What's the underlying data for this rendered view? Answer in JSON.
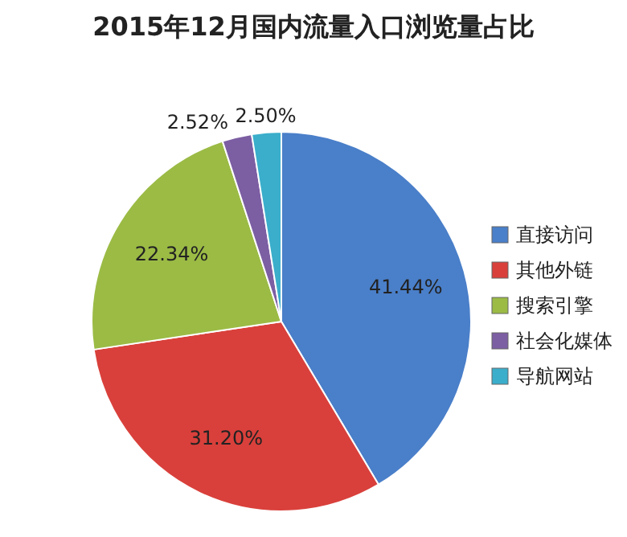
{
  "chart_data": {
    "type": "pie",
    "title": "2015年12月国内流量入口浏览量占比",
    "categories": [
      "直接访问",
      "其他外链",
      "搜索引擎",
      "社会化媒体",
      "导航网站"
    ],
    "values": [
      41.44,
      31.2,
      22.34,
      2.52,
      2.5
    ],
    "colors": [
      "#4a7fc9",
      "#d9403b",
      "#9bbb45",
      "#7c5ea3",
      "#3aaecb"
    ],
    "value_labels": [
      "41.44%",
      "31.20%",
      "22.34%",
      "2.52%",
      "2.50%"
    ],
    "legend": "right"
  }
}
